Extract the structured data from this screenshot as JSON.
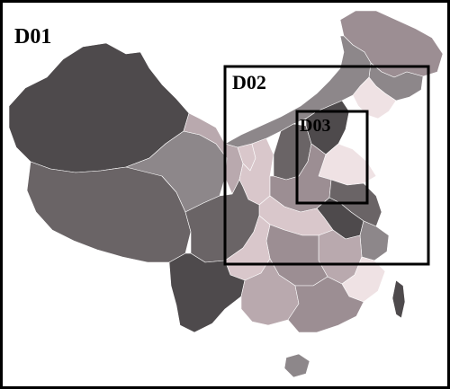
{
  "domains": [
    {
      "label": "D01"
    },
    {
      "label": "D02"
    },
    {
      "label": "D03"
    }
  ],
  "colors": {
    "dark": "#4e4a4c",
    "mid_dark": "#6a6466",
    "medium": "#8d878a",
    "mauve": "#9c8e93",
    "light_mauve": "#b9a9ae",
    "pale_pink": "#d9c7cb",
    "very_pale": "#efe2e4",
    "border": "#000000"
  }
}
